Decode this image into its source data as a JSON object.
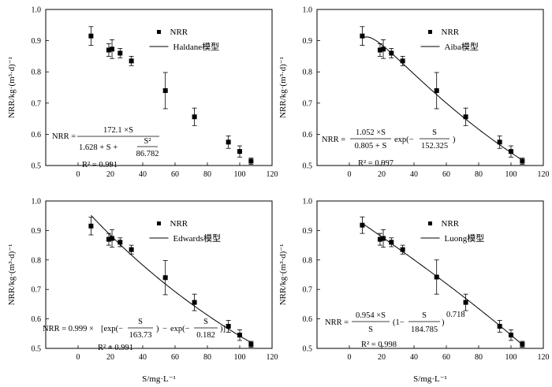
{
  "chart_data": [
    {
      "type": "scatter",
      "ylabel": "NRR/kg·(m³·d)⁻¹",
      "xlabel": "",
      "xlim": [
        -20,
        120
      ],
      "ylim": [
        0.5,
        1.0
      ],
      "xticks": [
        "0",
        "20",
        "40",
        "60",
        "80",
        "100",
        "120"
      ],
      "yticks": [
        "0.5",
        "0.6",
        "0.7",
        "0.8",
        "0.9",
        "1.0"
      ],
      "legend": {
        "points": "NRR",
        "line": "Haldane模型",
        "placement": "top-right"
      },
      "series": [
        {
          "name": "NRR",
          "x": [
            8,
            19,
            21,
            26,
            33,
            54,
            72,
            93,
            100,
            107
          ],
          "y": [
            0.915,
            0.87,
            0.873,
            0.86,
            0.835,
            0.74,
            0.656,
            0.575,
            0.545,
            0.514
          ],
          "err": [
            0.03,
            0.02,
            0.03,
            0.015,
            0.015,
            0.058,
            0.028,
            0.02,
            0.018,
            0.01
          ]
        }
      ],
      "model": {
        "type": "haldane",
        "k": 172.1,
        "ks": 1.628,
        "ki": 86.782
      },
      "equation": {
        "lhs": "NRR =",
        "num": "172.1 ×S",
        "den": "1.628 + S +",
        "frac_num": "S²",
        "frac_den": "86.782",
        "r2": "R² = 0.991"
      }
    },
    {
      "type": "scatter",
      "ylabel": "NRR/kg·(m³·d)⁻¹",
      "xlabel": "",
      "xlim": [
        -20,
        120
      ],
      "ylim": [
        0.5,
        1.0
      ],
      "xticks": [
        "0",
        "20",
        "40",
        "60",
        "80",
        "100",
        "120"
      ],
      "yticks": [
        "0.5",
        "0.6",
        "0.7",
        "0.8",
        "0.9",
        "1.0"
      ],
      "legend": {
        "points": "NRR",
        "line": "Aiba模型",
        "placement": "top-right"
      },
      "series": [
        {
          "name": "NRR",
          "x": [
            8,
            19,
            21,
            26,
            33,
            54,
            72,
            93,
            100,
            107
          ],
          "y": [
            0.915,
            0.87,
            0.873,
            0.86,
            0.835,
            0.74,
            0.656,
            0.575,
            0.545,
            0.514
          ],
          "err": [
            0.03,
            0.02,
            0.03,
            0.015,
            0.015,
            0.058,
            0.028,
            0.02,
            0.018,
            0.01
          ]
        }
      ],
      "model": {
        "type": "aiba",
        "k": 1.052,
        "ks": 0.805,
        "ki": 152.325
      },
      "equation": {
        "lhs": "NRR =",
        "num": "1.052 ×S",
        "den": "0.805 + S",
        "exp_label": "exp",
        "frac_num": "S",
        "frac_den": "152.325",
        "r2": "R² = 0.997"
      }
    },
    {
      "type": "scatter",
      "ylabel": "NRR/kg·(m³·d)⁻¹",
      "xlabel": "S/mg·L⁻¹",
      "xlim": [
        -20,
        120
      ],
      "ylim": [
        0.5,
        1.0
      ],
      "xticks": [
        "0",
        "20",
        "40",
        "60",
        "80",
        "100",
        "120"
      ],
      "yticks": [
        "0.5",
        "0.6",
        "0.7",
        "0.8",
        "0.9",
        "1.0"
      ],
      "legend": {
        "points": "NRR",
        "line": "Edwards模型",
        "placement": "top-right"
      },
      "series": [
        {
          "name": "NRR",
          "x": [
            8,
            19,
            21,
            26,
            33,
            54,
            72,
            93,
            100,
            107
          ],
          "y": [
            0.915,
            0.87,
            0.873,
            0.86,
            0.835,
            0.74,
            0.656,
            0.575,
            0.545,
            0.514
          ],
          "err": [
            0.03,
            0.02,
            0.03,
            0.015,
            0.015,
            0.058,
            0.028,
            0.02,
            0.018,
            0.01
          ]
        }
      ],
      "model": {
        "type": "edwards",
        "k": 0.999,
        "ki": 163.73,
        "ks": 0.182
      },
      "equation": {
        "lhs": "NRR = 0.999 ×",
        "exp_label": "exp",
        "frac1_num": "S",
        "frac1_den": "163.73",
        "minus": "−",
        "frac2_num": "S",
        "frac2_den": "0.182",
        "r2": "R² = 0.991"
      }
    },
    {
      "type": "scatter",
      "ylabel": "NRR/kg·(m³·d)⁻¹",
      "xlabel": "S/mg·L⁻¹",
      "xlim": [
        -20,
        120
      ],
      "ylim": [
        0.5,
        1.0
      ],
      "xticks": [
        "0",
        "20",
        "40",
        "60",
        "80",
        "100",
        "120"
      ],
      "yticks": [
        "0.5",
        "0.6",
        "0.7",
        "0.8",
        "0.9",
        "1.0"
      ],
      "legend": {
        "points": "NRR",
        "line": "Luong模型",
        "placement": "top-right"
      },
      "series": [
        {
          "name": "NRR",
          "x": [
            8,
            19,
            21,
            26,
            33,
            54,
            72,
            93,
            100,
            107
          ],
          "y": [
            0.918,
            0.87,
            0.873,
            0.86,
            0.835,
            0.742,
            0.656,
            0.575,
            0.545,
            0.514
          ],
          "err": [
            0.028,
            0.02,
            0.03,
            0.015,
            0.015,
            0.058,
            0.028,
            0.02,
            0.018,
            0.01
          ]
        }
      ],
      "model": {
        "type": "luong",
        "k": 0.954,
        "sm": 184.785,
        "n": 0.718
      },
      "equation": {
        "lhs": "NRR =",
        "num": "0.954 ×S",
        "den": "S",
        "one_minus": "1−",
        "frac_num": "S",
        "frac_den": "184.785",
        "power": "0.718",
        "r2": "R² = 0.998"
      }
    }
  ]
}
